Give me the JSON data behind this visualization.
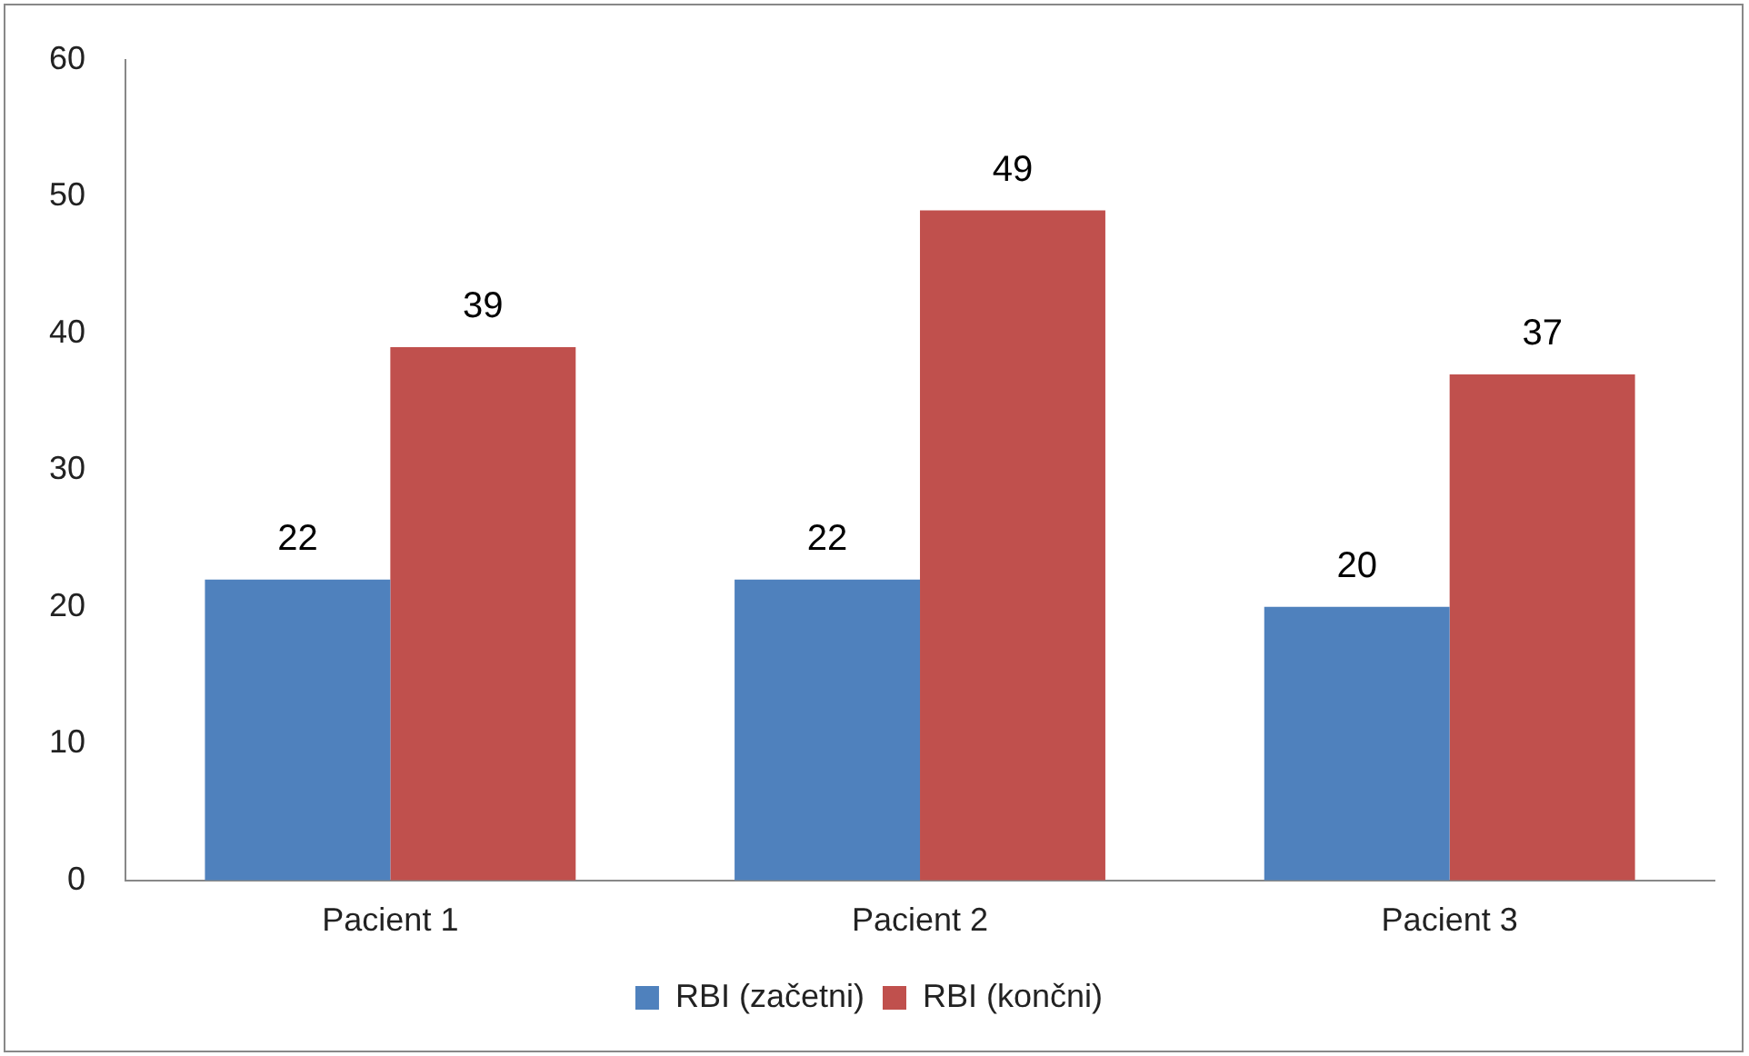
{
  "chart_data": {
    "type": "bar",
    "categories": [
      "Pacient 1",
      "Pacient 2",
      "Pacient 3"
    ],
    "series": [
      {
        "name": "RBI (začetni)",
        "color": "#4f81bd",
        "values": [
          22,
          22,
          20
        ]
      },
      {
        "name": "RBI (končni)",
        "color": "#c0504d",
        "values": [
          39,
          49,
          37
        ]
      }
    ],
    "ylim": [
      0,
      60
    ],
    "yticks": [
      0,
      10,
      20,
      30,
      40,
      50,
      60
    ],
    "grid": false,
    "legend": "bottom",
    "data_labels": true
  }
}
